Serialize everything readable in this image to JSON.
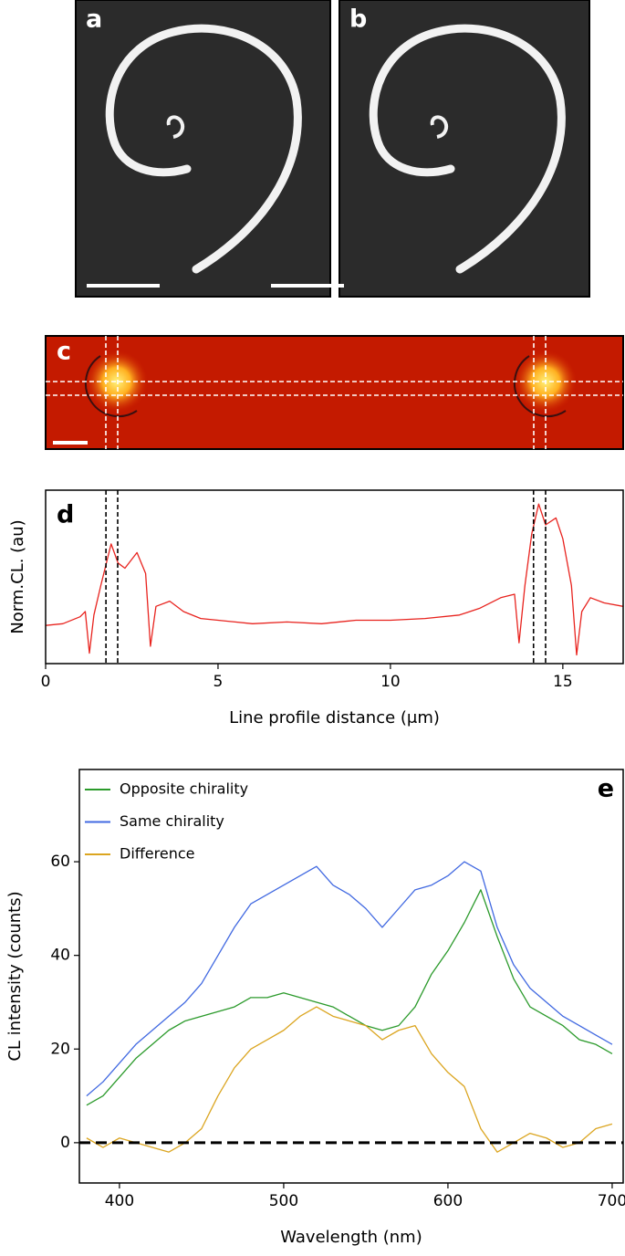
{
  "images": [
    {
      "label": "a"
    },
    {
      "label": "b"
    },
    {
      "label": "c"
    }
  ],
  "chart_data": [
    {
      "type": "line",
      "label": "d",
      "y_label": "Norm.CL. (au)",
      "x_label": "Line profile distance (μm)",
      "x": [
        0,
        0.5,
        1.0,
        1.15,
        1.27,
        1.4,
        1.6,
        1.9,
        2.1,
        2.3,
        2.65,
        2.9,
        3.04,
        3.2,
        3.6,
        4.0,
        4.5,
        5,
        6,
        7,
        8,
        9,
        10,
        11,
        12,
        12.6,
        13.2,
        13.6,
        13.73,
        13.9,
        14.1,
        14.3,
        14.5,
        14.8,
        15.0,
        15.25,
        15.4,
        15.55,
        15.8,
        16.2,
        16.75
      ],
      "values": [
        0.22,
        0.23,
        0.27,
        0.3,
        0.06,
        0.28,
        0.45,
        0.69,
        0.58,
        0.55,
        0.64,
        0.52,
        0.1,
        0.33,
        0.36,
        0.3,
        0.26,
        0.25,
        0.23,
        0.24,
        0.23,
        0.25,
        0.25,
        0.26,
        0.28,
        0.32,
        0.38,
        0.4,
        0.12,
        0.45,
        0.75,
        0.92,
        0.8,
        0.84,
        0.72,
        0.45,
        0.05,
        0.3,
        0.38,
        0.35,
        0.33
      ],
      "color": "#e8231e",
      "xlim": [
        0,
        16.75
      ],
      "xticks": [
        0,
        5,
        10,
        15
      ],
      "ylim": [
        0,
        1
      ],
      "vlines": [
        1.75,
        2.09,
        14.15,
        14.5
      ]
    },
    {
      "type": "line",
      "label": "e",
      "y_label": "CL intensity (counts)",
      "x_label": "Wavelength (nm)",
      "x": [
        380,
        390,
        400,
        410,
        420,
        430,
        440,
        450,
        460,
        470,
        480,
        490,
        500,
        510,
        520,
        530,
        540,
        550,
        560,
        570,
        580,
        590,
        600,
        610,
        620,
        630,
        640,
        650,
        660,
        670,
        680,
        690,
        700
      ],
      "series": [
        {
          "name": "Opposite chirality",
          "color": "#2b9a2b",
          "values": [
            8,
            10,
            14,
            18,
            21,
            24,
            26,
            27,
            28,
            29,
            31,
            31,
            32,
            31,
            30,
            29,
            27,
            25,
            24,
            25,
            29,
            36,
            41,
            47,
            54,
            44,
            35,
            29,
            27,
            25,
            22,
            21,
            19
          ]
        },
        {
          "name": "Same chirality",
          "color": "#4169e1",
          "values": [
            10,
            13,
            17,
            21,
            24,
            27,
            30,
            34,
            40,
            46,
            51,
            53,
            55,
            57,
            59,
            55,
            53,
            50,
            46,
            50,
            54,
            55,
            57,
            60,
            58,
            46,
            38,
            33,
            30,
            27,
            25,
            23,
            21
          ]
        },
        {
          "name": "Difference",
          "color": "#dba520",
          "values": [
            1,
            -1,
            1,
            0,
            -1,
            -2,
            0,
            3,
            10,
            16,
            20,
            22,
            24,
            27,
            29,
            27,
            26,
            25,
            22,
            24,
            25,
            19,
            15,
            12,
            3,
            -2,
            0,
            2,
            1,
            -1,
            0,
            3,
            4
          ]
        }
      ],
      "xlim": [
        375.6,
        706.7
      ],
      "xticks": [
        400,
        500,
        600,
        700
      ],
      "ylim": [
        -8.6,
        79.7
      ],
      "yticks": [
        0,
        20,
        40,
        60
      ],
      "hline": 0,
      "legend": "upper left"
    }
  ]
}
